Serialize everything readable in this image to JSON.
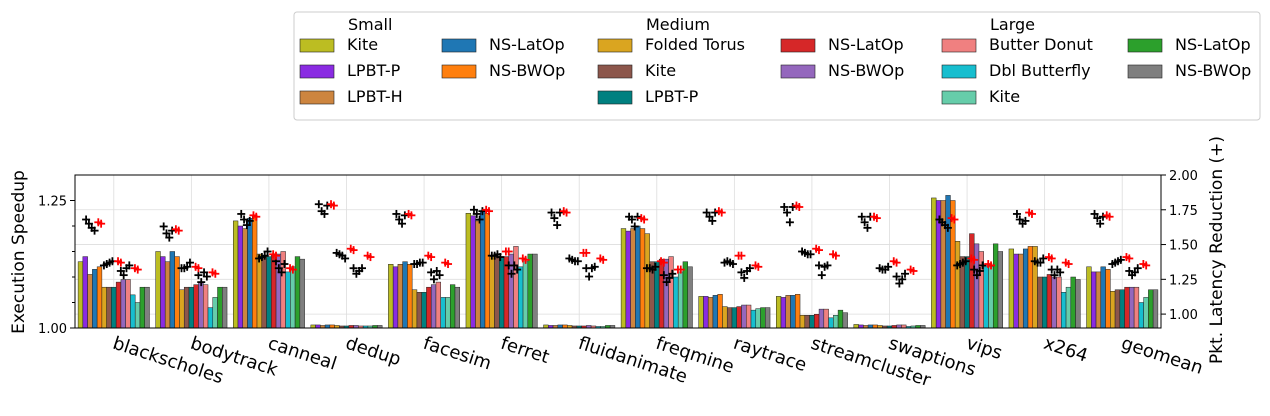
{
  "chart_data": {
    "type": "bar",
    "title": "",
    "ylabel": "Execution Speedup",
    "y2label": "Pkt. Latency Reduction (+)",
    "ylim": [
      1.0,
      1.3
    ],
    "y2lim": [
      0.9,
      2.0
    ],
    "yticks": [
      "1.00",
      "1.25"
    ],
    "y2ticks": [
      "1.00",
      "1.25",
      "1.50",
      "1.75",
      "2.00"
    ],
    "grid": true,
    "legend_position": "top",
    "categories": [
      "blackscholes",
      "bodytrack",
      "canneal",
      "dedup",
      "facesim",
      "ferret",
      "fluidanimate",
      "freqmine",
      "raytrace",
      "streamcluster",
      "swaptions",
      "vips",
      "x264",
      "geomean"
    ],
    "groups": [
      {
        "title": "Small",
        "series": [
          0,
          1,
          2,
          3,
          4
        ]
      },
      {
        "title": "Medium",
        "series": [
          5,
          6,
          7,
          8,
          9
        ]
      },
      {
        "title": "Large",
        "series": [
          10,
          11,
          12,
          13,
          14
        ]
      }
    ],
    "series": [
      {
        "name": "Kite",
        "color": "#bcbd22",
        "values": [
          1.13,
          1.15,
          1.21,
          1.006,
          1.125,
          1.225,
          1.006,
          1.195,
          1.062,
          1.062,
          1.007,
          1.255,
          1.155,
          1.12
        ]
      },
      {
        "name": "LPBT-P",
        "color": "#8a2be2",
        "values": [
          1.14,
          1.14,
          1.2,
          1.006,
          1.12,
          1.22,
          1.005,
          1.19,
          1.062,
          1.06,
          1.006,
          1.25,
          1.145,
          1.11
        ]
      },
      {
        "name": "LPBT-H",
        "color": "#cd853f",
        "values": [
          1.105,
          1.13,
          1.195,
          1.005,
          1.125,
          1.21,
          1.005,
          1.195,
          1.06,
          1.064,
          1.005,
          1.25,
          1.145,
          1.11
        ]
      },
      {
        "name": "NS-LatOp",
        "color": "#1f77b4",
        "values": [
          1.115,
          1.15,
          1.215,
          1.006,
          1.13,
          1.23,
          1.006,
          1.2,
          1.064,
          1.064,
          1.006,
          1.26,
          1.155,
          1.12
        ]
      },
      {
        "name": "NS-BWOp",
        "color": "#ff7f0e",
        "values": [
          1.12,
          1.14,
          1.22,
          1.006,
          1.125,
          1.225,
          1.006,
          1.195,
          1.066,
          1.066,
          1.006,
          1.25,
          1.16,
          1.115
        ]
      },
      {
        "name": "Folded Torus",
        "color": "#daa520",
        "values": [
          1.08,
          1.075,
          1.145,
          1.005,
          1.075,
          1.14,
          1.005,
          1.185,
          1.042,
          1.025,
          1.005,
          1.17,
          1.16,
          1.072
        ]
      },
      {
        "name": "Kite",
        "color": "#8c564b",
        "values": [
          1.08,
          1.08,
          1.14,
          1.004,
          1.07,
          1.14,
          1.004,
          1.13,
          1.04,
          1.025,
          1.004,
          1.14,
          1.1,
          1.075
        ]
      },
      {
        "name": "LPBT-P",
        "color": "#008080",
        "values": [
          1.08,
          1.08,
          1.14,
          1.004,
          1.07,
          1.14,
          1.004,
          1.13,
          1.04,
          1.025,
          1.004,
          1.14,
          1.1,
          1.075
        ]
      },
      {
        "name": "NS-LatOp",
        "color": "#d62728",
        "values": [
          1.09,
          1.085,
          1.145,
          1.005,
          1.08,
          1.14,
          1.004,
          1.135,
          1.042,
          1.027,
          1.005,
          1.185,
          1.105,
          1.08
        ]
      },
      {
        "name": "NS-BWOp",
        "color": "#9467bd",
        "values": [
          1.095,
          1.09,
          1.145,
          1.005,
          1.085,
          1.145,
          1.005,
          1.135,
          1.045,
          1.037,
          1.006,
          1.165,
          1.1,
          1.08
        ]
      },
      {
        "name": "Butter Donut",
        "color": "#f08080",
        "values": [
          1.095,
          1.085,
          1.15,
          1.004,
          1.09,
          1.16,
          1.004,
          1.14,
          1.045,
          1.037,
          1.006,
          1.15,
          1.1,
          1.08
        ]
      },
      {
        "name": "Dbl Butterfly",
        "color": "#17becf",
        "values": [
          1.065,
          1.04,
          1.11,
          1.004,
          1.06,
          1.12,
          1.003,
          1.1,
          1.035,
          1.02,
          1.003,
          1.12,
          1.07,
          1.05
        ]
      },
      {
        "name": "Kite",
        "color": "#66cdaa",
        "values": [
          1.05,
          1.06,
          1.12,
          1.004,
          1.06,
          1.13,
          1.003,
          1.11,
          1.038,
          1.025,
          1.004,
          1.12,
          1.08,
          1.06
        ]
      },
      {
        "name": "NS-LatOp",
        "color": "#2ca02c",
        "values": [
          1.08,
          1.08,
          1.14,
          1.005,
          1.085,
          1.145,
          1.005,
          1.13,
          1.04,
          1.035,
          1.005,
          1.165,
          1.1,
          1.075
        ]
      },
      {
        "name": "NS-BWOp",
        "color": "#7f7f7f",
        "values": [
          1.08,
          1.08,
          1.135,
          1.005,
          1.08,
          1.145,
          1.005,
          1.12,
          1.04,
          1.03,
          1.005,
          1.15,
          1.095,
          1.075
        ]
      }
    ],
    "latency_reduction": {
      "black": [
        [
          1.68,
          1.65,
          1.62,
          1.6,
          1.35,
          1.36,
          1.37,
          1.38,
          1.31,
          1.28,
          1.33,
          1.35
        ],
        [
          1.63,
          1.58,
          1.55,
          1.6,
          1.33,
          1.33,
          1.34,
          1.37,
          1.28,
          1.23,
          1.3,
          1.27
        ],
        [
          1.72,
          1.68,
          1.64,
          1.67,
          1.4,
          1.41,
          1.42,
          1.45,
          1.38,
          1.33,
          1.3,
          1.36
        ],
        [
          1.79,
          1.74,
          1.72,
          1.78,
          1.44,
          1.43,
          1.42,
          1.4,
          1.33,
          1.29,
          1.31,
          1.33
        ],
        [
          1.72,
          1.68,
          1.65,
          1.71,
          1.36,
          1.36,
          1.37,
          1.37,
          1.3,
          1.25,
          1.31,
          1.28
        ],
        [
          1.75,
          1.72,
          1.68,
          1.74,
          1.42,
          1.42,
          1.43,
          1.41,
          1.35,
          1.29,
          1.35,
          1.32
        ],
        [
          1.73,
          1.69,
          1.64,
          1.73,
          1.4,
          1.39,
          1.38,
          1.38,
          1.33,
          1.27,
          1.33,
          1.34
        ],
        [
          1.7,
          1.68,
          1.63,
          1.7,
          1.33,
          1.33,
          1.32,
          1.34,
          1.28,
          1.23,
          1.26,
          1.29
        ],
        [
          1.73,
          1.7,
          1.67,
          1.73,
          1.37,
          1.38,
          1.37,
          1.36,
          1.3,
          1.26,
          1.31,
          1.33
        ],
        [
          1.77,
          1.73,
          1.66,
          1.77,
          1.45,
          1.44,
          1.43,
          1.43,
          1.35,
          1.28,
          1.34,
          1.35
        ],
        [
          1.7,
          1.66,
          1.62,
          1.7,
          1.33,
          1.32,
          1.32,
          1.34,
          1.27,
          1.22,
          1.25,
          1.29
        ],
        [
          1.68,
          1.66,
          1.64,
          1.62,
          1.35,
          1.36,
          1.37,
          1.38,
          1.32,
          1.28,
          1.31,
          1.35
        ],
        [
          1.72,
          1.68,
          1.65,
          1.67,
          1.38,
          1.37,
          1.37,
          1.4,
          1.32,
          1.28,
          1.32,
          1.3
        ],
        [
          1.72,
          1.69,
          1.65,
          1.7,
          1.36,
          1.37,
          1.38,
          1.39,
          1.31,
          1.28,
          1.3,
          1.33
        ]
      ],
      "red": [
        [
          1.66,
          1.65,
          1.38,
          1.37,
          1.33,
          1.32
        ],
        [
          1.61,
          1.6,
          1.34,
          1.33,
          1.3,
          1.29
        ],
        [
          1.71,
          1.7,
          1.43,
          1.42,
          1.33,
          1.32
        ],
        [
          1.79,
          1.78,
          1.47,
          1.46,
          1.42,
          1.41
        ],
        [
          1.72,
          1.71,
          1.42,
          1.41,
          1.37,
          1.36
        ],
        [
          1.75,
          1.74,
          1.45,
          1.45,
          1.4,
          1.39
        ],
        [
          1.74,
          1.73,
          1.44,
          1.44,
          1.4,
          1.39
        ],
        [
          1.69,
          1.68,
          1.38,
          1.37,
          1.32,
          1.32
        ],
        [
          1.74,
          1.73,
          1.42,
          1.42,
          1.35,
          1.34
        ],
        [
          1.78,
          1.77,
          1.47,
          1.46,
          1.43,
          1.42
        ],
        [
          1.7,
          1.69,
          1.38,
          1.37,
          1.32,
          1.31
        ],
        [
          1.69,
          1.68,
          1.4,
          1.39,
          1.36,
          1.35
        ],
        [
          1.73,
          1.72,
          1.41,
          1.4,
          1.37,
          1.36
        ],
        [
          1.71,
          1.7,
          1.41,
          1.4,
          1.36,
          1.35
        ]
      ]
    }
  }
}
